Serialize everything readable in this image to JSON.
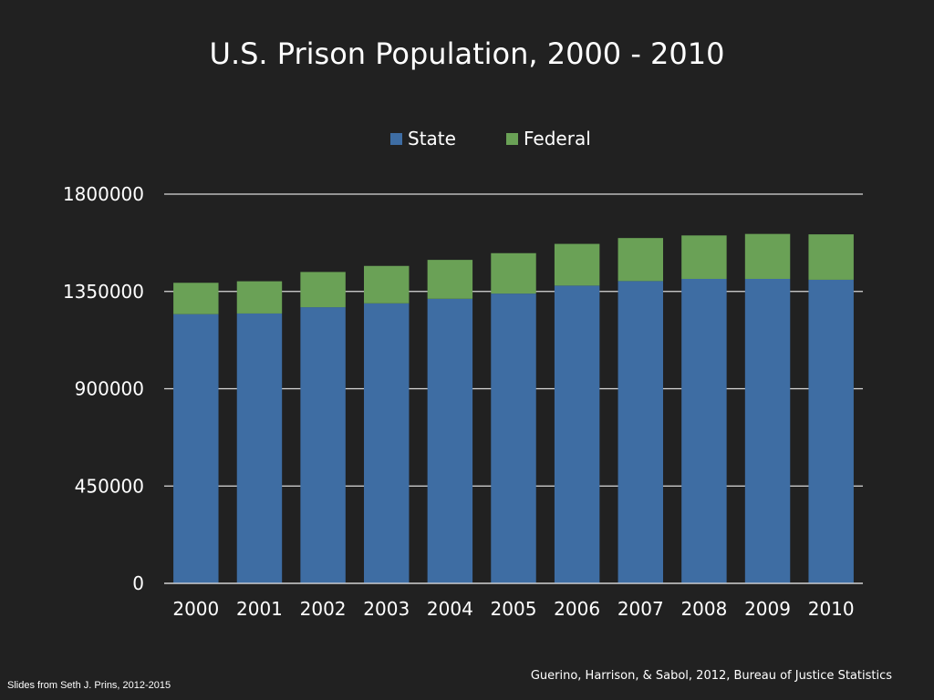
{
  "chart_data": {
    "type": "bar",
    "stacked": true,
    "title": "U.S. Prison Population, 2000 - 2010",
    "categories": [
      "2000",
      "2001",
      "2002",
      "2003",
      "2004",
      "2005",
      "2006",
      "2007",
      "2008",
      "2009",
      "2010"
    ],
    "series": [
      {
        "name": "State",
        "color": "#3e6da3",
        "values": [
          1245000,
          1248000,
          1277000,
          1295000,
          1316000,
          1340000,
          1377000,
          1398000,
          1408000,
          1408000,
          1404000
        ]
      },
      {
        "name": "Federal",
        "color": "#6aa156",
        "values": [
          145000,
          149000,
          163000,
          173000,
          180000,
          187000,
          193000,
          199000,
          201000,
          208000,
          210000
        ]
      }
    ],
    "yticks": [
      "0",
      "450000",
      "900000",
      "1350000",
      "1800000"
    ],
    "ylim": [
      0,
      1800000
    ],
    "grid": true,
    "legend_position": "top-center"
  },
  "footer": {
    "credit": "Slides from Seth J. Prins, 2012-2015",
    "source": "Guerino, Harrison, & Sabol, 2012,  Bureau of Justice Statistics"
  }
}
